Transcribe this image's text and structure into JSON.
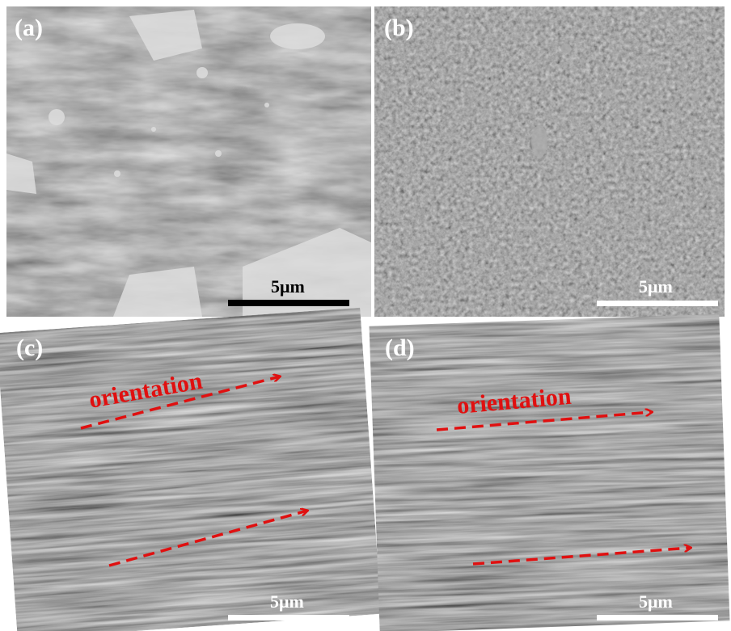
{
  "panels": [
    {
      "label": "(a)",
      "scale_bar": "5μm"
    },
    {
      "label": "(b)",
      "scale_bar": "5μm"
    },
    {
      "label": "(c)",
      "scale_bar": "5μm",
      "annotation": "orientation"
    },
    {
      "label": "(d)",
      "scale_bar": "5μm",
      "annotation": "orientation"
    }
  ]
}
